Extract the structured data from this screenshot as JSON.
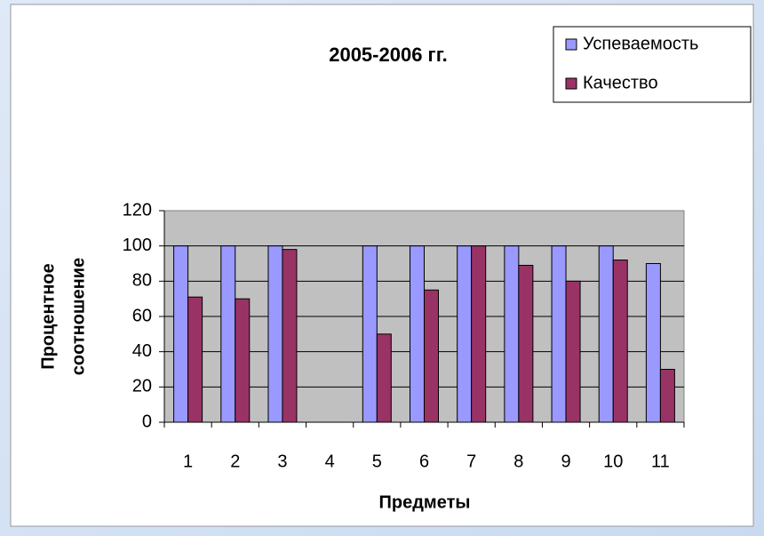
{
  "chart_data": {
    "type": "bar",
    "title": "2005-2006 гг.",
    "xlabel": "Предметы",
    "ylabel": [
      "Процентное",
      "соотношение"
    ],
    "categories": [
      "1",
      "2",
      "3",
      "4",
      "5",
      "6",
      "7",
      "8",
      "9",
      "10",
      "11"
    ],
    "series": [
      {
        "name": "Успеваемость",
        "color": "#9999ff",
        "values": [
          100,
          100,
          100,
          null,
          100,
          100,
          100,
          100,
          100,
          100,
          90
        ]
      },
      {
        "name": "Качество",
        "color": "#993366",
        "values": [
          71,
          70,
          98,
          null,
          50,
          75,
          100,
          89,
          80,
          92,
          30
        ]
      }
    ],
    "ylim": [
      0,
      120
    ],
    "yticks": [
      0,
      20,
      40,
      60,
      80,
      100,
      120
    ],
    "grid": true,
    "legend": "top-right"
  }
}
